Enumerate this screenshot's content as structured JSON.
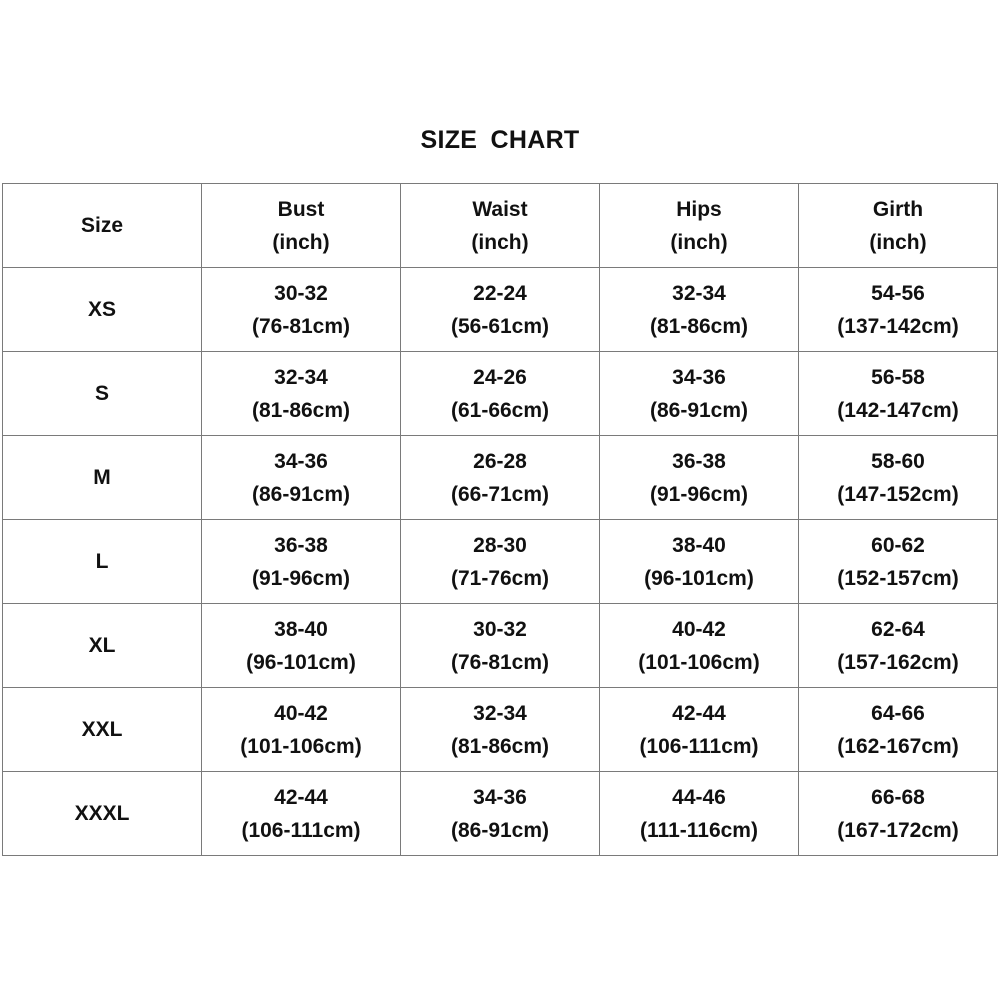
{
  "title": "SIZE  CHART",
  "headers": [
    {
      "line1": "Size",
      "line2": ""
    },
    {
      "line1": "Bust",
      "line2": "(inch)"
    },
    {
      "line1": "Waist",
      "line2": "(inch)"
    },
    {
      "line1": "Hips",
      "line2": "(inch)"
    },
    {
      "line1": "Girth",
      "line2": "(inch)"
    }
  ],
  "rows": [
    {
      "size": "XS",
      "cells": [
        [
          "30-32",
          "(76-81cm)"
        ],
        [
          "22-24",
          "(56-61cm)"
        ],
        [
          "32-34",
          "(81-86cm)"
        ],
        [
          "54-56",
          "(137-142cm)"
        ]
      ]
    },
    {
      "size": "S",
      "cells": [
        [
          "32-34",
          "(81-86cm)"
        ],
        [
          "24-26",
          "(61-66cm)"
        ],
        [
          "34-36",
          "(86-91cm)"
        ],
        [
          "56-58",
          "(142-147cm)"
        ]
      ]
    },
    {
      "size": "M",
      "cells": [
        [
          "34-36",
          "(86-91cm)"
        ],
        [
          "26-28",
          "(66-71cm)"
        ],
        [
          "36-38",
          "(91-96cm)"
        ],
        [
          "58-60",
          "(147-152cm)"
        ]
      ]
    },
    {
      "size": "L",
      "cells": [
        [
          "36-38",
          "(91-96cm)"
        ],
        [
          "28-30",
          "(71-76cm)"
        ],
        [
          "38-40",
          "(96-101cm)"
        ],
        [
          "60-62",
          "(152-157cm)"
        ]
      ]
    },
    {
      "size": "XL",
      "cells": [
        [
          "38-40",
          "(96-101cm)"
        ],
        [
          "30-32",
          "(76-81cm)"
        ],
        [
          "40-42",
          "(101-106cm)"
        ],
        [
          "62-64",
          "(157-162cm)"
        ]
      ]
    },
    {
      "size": "XXL",
      "cells": [
        [
          "40-42",
          "(101-106cm)"
        ],
        [
          "32-34",
          "(81-86cm)"
        ],
        [
          "42-44",
          "(106-111cm)"
        ],
        [
          "64-66",
          "(162-167cm)"
        ]
      ]
    },
    {
      "size": "XXXL",
      "cells": [
        [
          "42-44",
          "(106-111cm)"
        ],
        [
          "34-36",
          "(86-91cm)"
        ],
        [
          "44-46",
          "(111-116cm)"
        ],
        [
          "66-68",
          "(167-172cm)"
        ]
      ]
    }
  ]
}
